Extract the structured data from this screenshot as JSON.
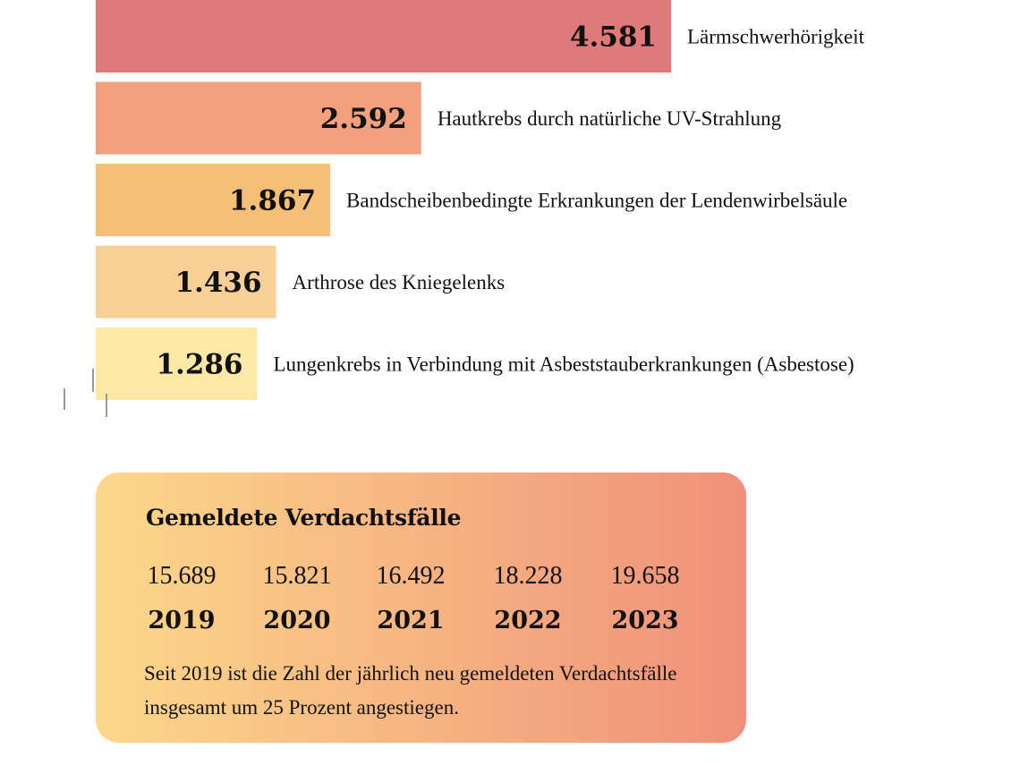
{
  "chart_data": {
    "type": "bar",
    "orientation": "horizontal",
    "categories": [
      "Lärmschwerhörigkeit",
      "Hautkrebs durch natürliche UV-Strahlung",
      "Bandscheibenbedingte Erkrankungen der Lendenwirbelsäule",
      "Arthrose des Kniegelenks",
      "Lungenkrebs in Verbindung mit Asbeststauberkrankungen (Asbestose)"
    ],
    "values": [
      4581,
      2592,
      1867,
      1436,
      1286
    ],
    "value_labels": [
      "4.581",
      "2.592",
      "1.867",
      "1.436",
      "1.286"
    ],
    "colors": [
      "#e07a7a",
      "#f2a07e",
      "#f5bf75",
      "#f9cf98",
      "#fde8a6"
    ],
    "grid": false,
    "legend": "none"
  },
  "summary": {
    "title": "Gemeldete Verdachtsfälle",
    "years": [
      {
        "count": "15.689",
        "year": "2019"
      },
      {
        "count": "15.821",
        "year": "2020"
      },
      {
        "count": "16.492",
        "year": "2021"
      },
      {
        "count": "18.228",
        "year": "2022"
      },
      {
        "count": "19.658",
        "year": "2023"
      }
    ],
    "note": "Seit 2019 ist die Zahl der jährlich neu gemeldeten Verdachtsfälle insgesamt um 25 Prozent angestiegen.",
    "gradient_start": "#fcd88a",
    "gradient_end": "#f0907a"
  }
}
